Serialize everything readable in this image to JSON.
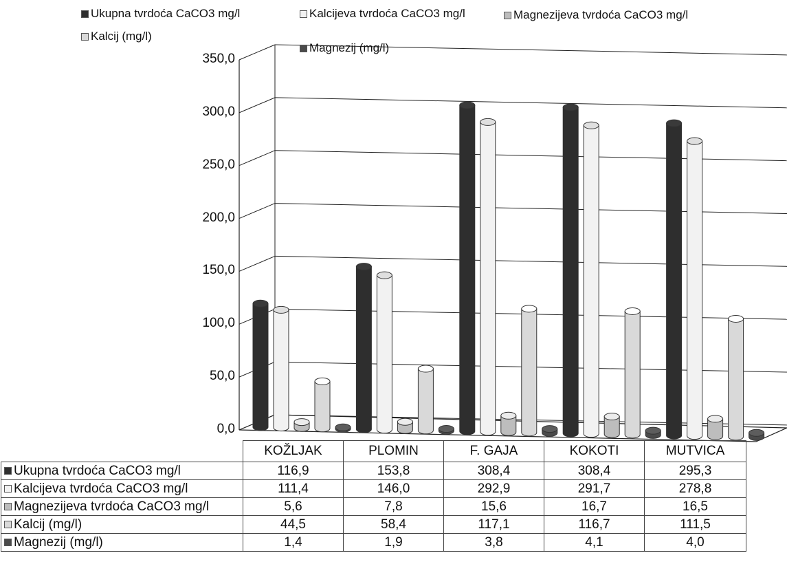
{
  "chart_data": {
    "type": "bar",
    "categories": [
      "KOŽLJAK",
      "PLOMIN",
      "F. GAJA",
      "KOKOTI",
      "MUTVICA"
    ],
    "series": [
      {
        "name": "Ukupna tvrdoća CaCO3 mg/l",
        "values": [
          116.9,
          153.8,
          308.4,
          308.4,
          295.3
        ],
        "display": [
          "116,9",
          "153,8",
          "308,4",
          "308,4",
          "295,3"
        ],
        "color": "#2e2e2e"
      },
      {
        "name": "Kalcijeva tvrdoća CaCO3 mg/l",
        "values": [
          111.4,
          146.0,
          292.9,
          291.7,
          278.8
        ],
        "display": [
          "111,4",
          "146,0",
          "292,9",
          "291,7",
          "278,8"
        ],
        "color": "#f2f2f2"
      },
      {
        "name": "Magnezijeva tvrdoća CaCO3 mg/l",
        "values": [
          5.6,
          7.8,
          15.6,
          16.7,
          16.5
        ],
        "display": [
          "5,6",
          "7,8",
          "15,6",
          "16,7",
          "16,5"
        ],
        "color": "#bdbdbd"
      },
      {
        "name": "Kalcij (mg/l)",
        "values": [
          44.5,
          58.4,
          117.1,
          116.7,
          111.5
        ],
        "display": [
          "44,5",
          "58,4",
          "117,1",
          "116,7",
          "111,5"
        ],
        "color": "#d9d9d9"
      },
      {
        "name": "Magnezij (mg/l)",
        "values": [
          1.4,
          1.9,
          3.8,
          4.1,
          4.0
        ],
        "display": [
          "1,4",
          "1,9",
          "3,8",
          "4,1",
          "4,0"
        ],
        "color": "#4a4a4a"
      }
    ],
    "yticks": [
      "0,0",
      "50,0",
      "100,0",
      "150,0",
      "200,0",
      "250,0",
      "300,0",
      "350,0"
    ],
    "ylim": [
      0,
      350
    ],
    "grid": true,
    "legend_position": "top",
    "style": "3d clustered column with data table"
  }
}
